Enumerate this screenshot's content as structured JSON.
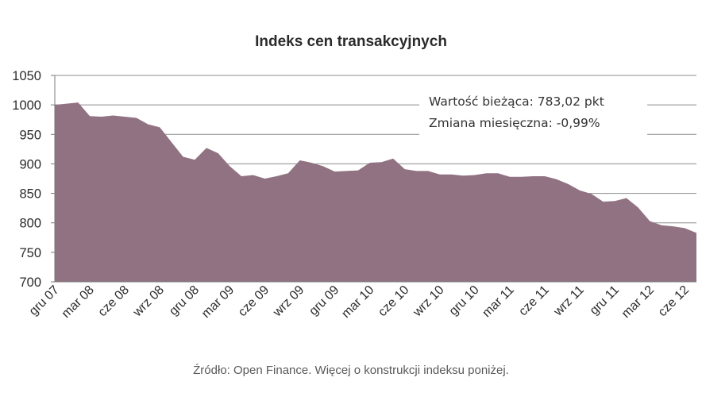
{
  "chart_data": {
    "type": "area",
    "title": "Indeks cen transakcyjnych",
    "xlabel": "",
    "ylabel": "",
    "ylim": [
      700,
      1050
    ],
    "yticks": [
      700,
      750,
      800,
      850,
      900,
      950,
      1000,
      1050
    ],
    "grid": true,
    "color": "#907282",
    "x_tick_labels": [
      "gru 07",
      "mar 08",
      "cze 08",
      "wrz 08",
      "gru 08",
      "mar 09",
      "cze 09",
      "wrz 09",
      "gru 09",
      "mar 10",
      "cze 10",
      "wrz 10",
      "gru 10",
      "mar 11",
      "cze 11",
      "wrz 11",
      "gru 11",
      "mar 12",
      "cze 12"
    ],
    "values": [
      1000,
      1002,
      1004,
      981,
      980,
      982,
      980,
      978,
      967,
      962,
      937,
      912,
      907,
      927,
      918,
      896,
      879,
      881,
      875,
      879,
      884,
      906,
      902,
      896,
      887,
      888,
      889,
      902,
      903,
      909,
      891,
      888,
      888,
      882,
      882,
      880,
      881,
      884,
      884,
      878,
      878,
      879,
      879,
      874,
      866,
      855,
      849,
      836,
      837,
      842,
      826,
      803,
      796,
      794,
      791,
      783
    ],
    "annotations": [
      "Wartość bieżąca: 783,02 pkt",
      "Zmiana miesięczna: -0,99%"
    ]
  },
  "source_note": "Źródło: Open Finance. Więcej o konstrukcji indeksu poniżej."
}
